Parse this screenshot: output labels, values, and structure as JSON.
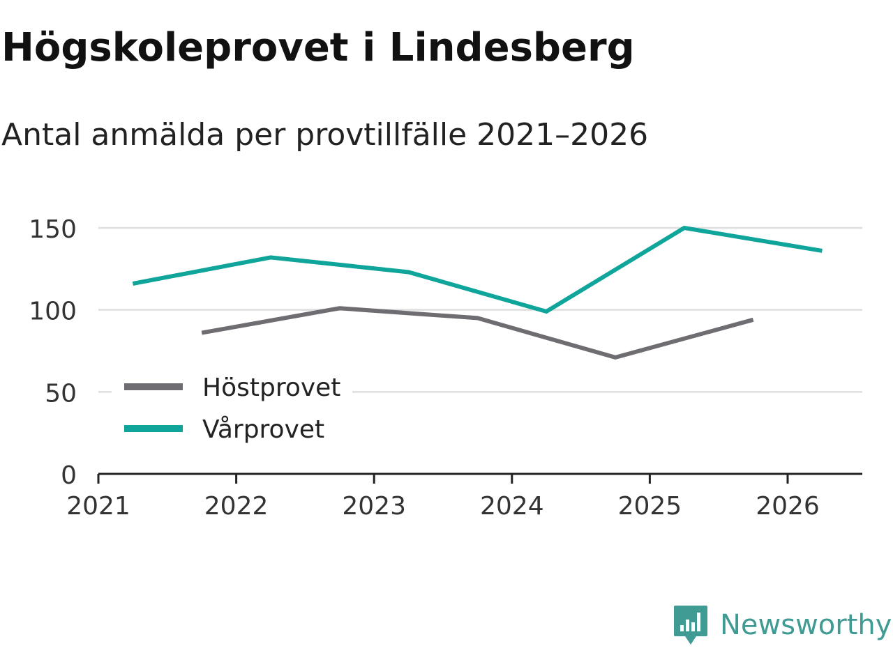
{
  "title": "Högskoleprovet i Lindesberg",
  "subtitle": "Antal anmälda per provtillfälle 2021–2026",
  "brand": {
    "name": "Newsworthy",
    "icon": "newsworthy-logo-icon",
    "color": "#3f9b93"
  },
  "chart_data": {
    "type": "line",
    "title": "Högskoleprovet i Lindesberg",
    "subtitle": "Antal anmälda per provtillfälle 2021–2026",
    "xlabel": "",
    "ylabel": "",
    "xlim": [
      2021,
      2026.55
    ],
    "ylim": [
      0,
      150
    ],
    "yticks": [
      0,
      50,
      100,
      150
    ],
    "xticks": [
      2021,
      2022,
      2023,
      2024,
      2025,
      2026
    ],
    "xtick_labels": [
      "2021",
      "2022",
      "2023",
      "2024",
      "2025",
      "2026"
    ],
    "grid": true,
    "legend_position": "left-bottom",
    "series": [
      {
        "name": "Höstprovet",
        "color": "#6f6d72",
        "points": [
          {
            "x": 2021.75,
            "y": 86
          },
          {
            "x": 2022.75,
            "y": 101
          },
          {
            "x": 2023.75,
            "y": 95
          },
          {
            "x": 2024.75,
            "y": 71
          },
          {
            "x": 2025.75,
            "y": 94
          }
        ]
      },
      {
        "name": "Vårprovet",
        "color": "#10a59b",
        "points": [
          {
            "x": 2021.25,
            "y": 116
          },
          {
            "x": 2022.25,
            "y": 132
          },
          {
            "x": 2023.25,
            "y": 123
          },
          {
            "x": 2024.25,
            "y": 99
          },
          {
            "x": 2025.25,
            "y": 150
          },
          {
            "x": 2026.25,
            "y": 136
          }
        ]
      }
    ]
  }
}
